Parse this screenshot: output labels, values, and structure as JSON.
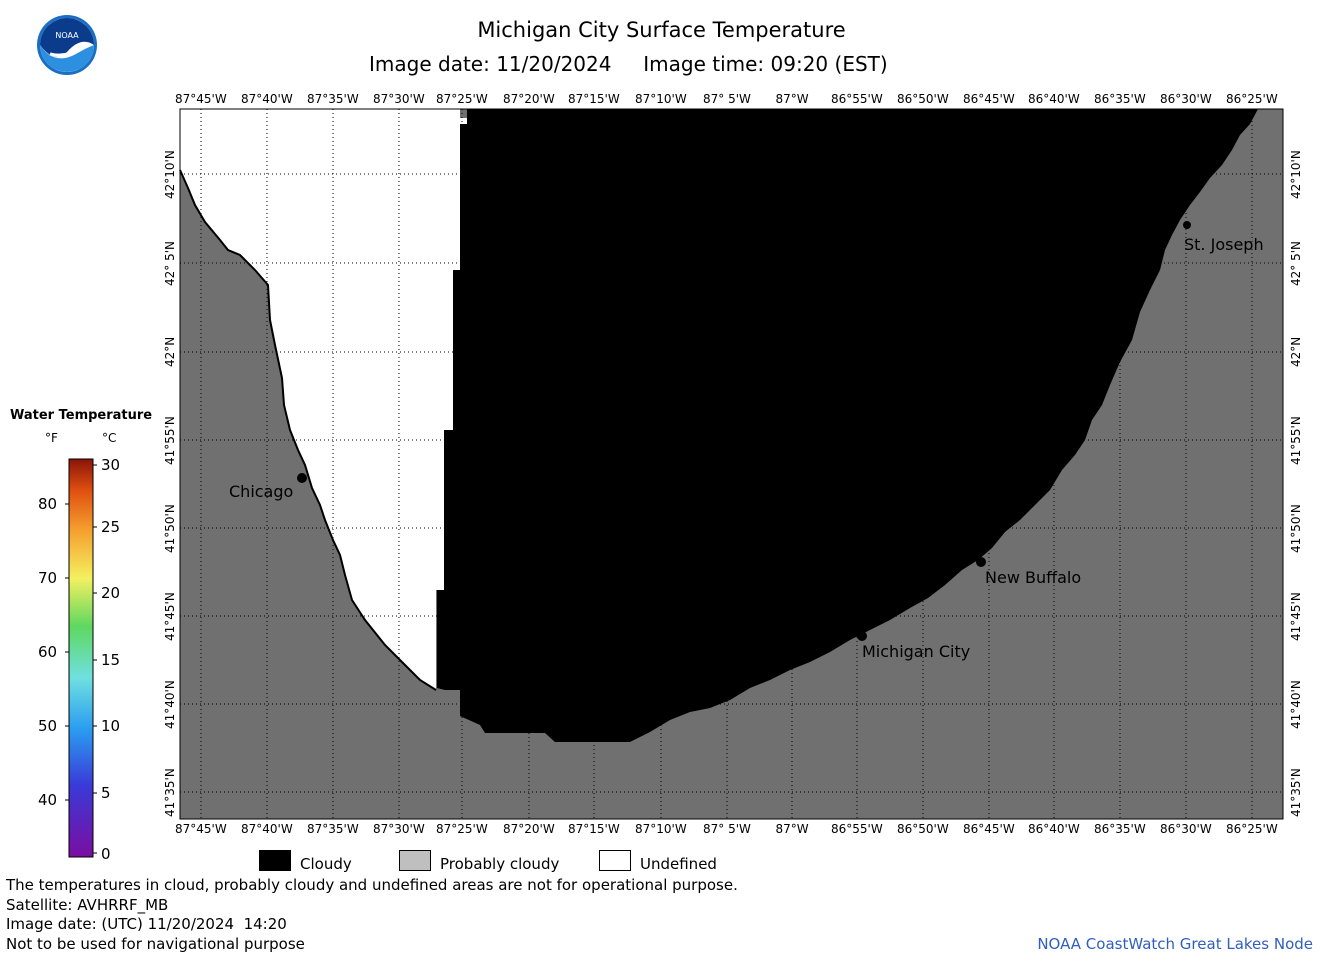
{
  "header": {
    "title": "Michigan City Surface Temperature",
    "subtitle": "Image date: 11/20/2024     Image time: 09:20 (EST)"
  },
  "map": {
    "lon_labels": [
      "87°45'W",
      "87°40'W",
      "87°35'W",
      "87°30'W",
      "87°25'W",
      "87°20'W",
      "87°15'W",
      "87°10'W",
      "87° 5'W",
      "87°W",
      "86°55'W",
      "86°50'W",
      "86°45'W",
      "86°40'W",
      "86°35'W",
      "86°30'W",
      "86°25'W"
    ],
    "lat_labels": [
      "42°10'N",
      "42° 5'N",
      "42°N",
      "41°55'N",
      "41°50'N",
      "41°45'N",
      "41°40'N",
      "41°35'N"
    ],
    "places": [
      {
        "name": "Chicago"
      },
      {
        "name": "St. Joseph"
      },
      {
        "name": "New Buffalo"
      },
      {
        "name": "Michigan City"
      }
    ],
    "colors": {
      "cloudy": "#000000",
      "probably_cloudy": "#707070",
      "undefined": "#ffffff",
      "land": "#707070",
      "grid": "#000000"
    }
  },
  "legend": {
    "title": "Water Temperature",
    "unit_f": "°F",
    "unit_c": "°C",
    "f_labels": [
      "80",
      "70",
      "60",
      "50",
      "40"
    ],
    "c_labels": [
      "30",
      "25",
      "20",
      "15",
      "10",
      "5",
      "0"
    ]
  },
  "key": {
    "cloudy": "Cloudy",
    "probably_cloudy": "Probably cloudy",
    "undefined": "Undefined"
  },
  "footer": {
    "note1": "The temperatures in cloud, probably cloudy and undefined areas are not for operational purpose.",
    "satellite": "Satellite: AVHRRF_MB",
    "utc_date": "Image date: (UTC) 11/20/2024  14:20",
    "nav_note": "Not to be used for navigational purpose",
    "credit": "NOAA CoastWatch Great Lakes Node"
  }
}
